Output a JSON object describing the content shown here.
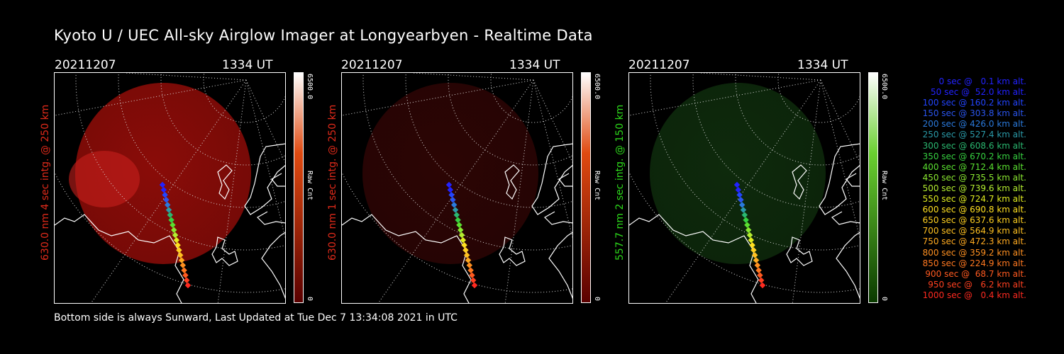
{
  "title": "Kyoto U / UEC All-sky Airglow Imager at Longyearbyen - Realtime Data",
  "footer": "Bottom side is always Sunward, Last Updated at Tue Dec  7 13:34:08 2021 in UTC",
  "panels": [
    {
      "date": "20211207",
      "time": "1334 UT",
      "ylabel": "630.0 nm 4 sec intg. @ 250 km",
      "label_color": "#e02a1a",
      "cbar_max": "6500.0",
      "cbar_min": "0",
      "cbar_title": "Raw Cnt",
      "cbar_top": "#ffffff",
      "cbar_mid": "#e04a10",
      "cbar_bottom": "#5a0000",
      "glow_color": "#8a0c08"
    },
    {
      "date": "20211207",
      "time": "1334 UT",
      "ylabel": "630.0 nm 1 sec intg. @ 250 km",
      "label_color": "#e02a1a",
      "cbar_max": "6500.0",
      "cbar_min": "0",
      "cbar_title": "Raw Cnt",
      "cbar_top": "#ffffff",
      "cbar_mid": "#e04a10",
      "cbar_bottom": "#5a0000",
      "glow_color": "#2c0504"
    },
    {
      "date": "20211207",
      "time": "1334 UT",
      "ylabel": "557.7 nm 2 sec intg. @ 150 km",
      "label_color": "#2cd81a",
      "cbar_max": "6500.0",
      "cbar_min": "0",
      "cbar_title": "Raw Cnt",
      "cbar_top": "#ffffff",
      "cbar_mid": "#6ad030",
      "cbar_bottom": "#0a3a00",
      "glow_color": "#0e2a0c"
    }
  ],
  "legend": [
    {
      "text": "0 sec @   0.1 km alt.",
      "color": "#2222ff"
    },
    {
      "text": "50 sec @  52.0 km alt.",
      "color": "#2222ff"
    },
    {
      "text": "100 sec @ 160.2 km alt.",
      "color": "#2244ff"
    },
    {
      "text": "150 sec @ 303.8 km alt.",
      "color": "#2a55ee"
    },
    {
      "text": "200 sec @ 426.0 km alt.",
      "color": "#2a7adc"
    },
    {
      "text": "250 sec @ 527.4 km alt.",
      "color": "#2a9aa8"
    },
    {
      "text": "300 sec @ 608.6 km alt.",
      "color": "#2ab870"
    },
    {
      "text": "350 sec @ 670.2 km alt.",
      "color": "#36d040"
    },
    {
      "text": "400 sec @ 712.4 km alt.",
      "color": "#5ae030"
    },
    {
      "text": "450 sec @ 735.5 km alt.",
      "color": "#8ae830"
    },
    {
      "text": "500 sec @ 739.6 km alt.",
      "color": "#b4ee30"
    },
    {
      "text": "550 sec @ 724.7 km alt.",
      "color": "#e0ec20"
    },
    {
      "text": "600 sec @ 690.8 km alt.",
      "color": "#ffe020"
    },
    {
      "text": "650 sec @ 637.6 km alt.",
      "color": "#ffd020"
    },
    {
      "text": "700 sec @ 564.9 km alt.",
      "color": "#ffc020"
    },
    {
      "text": "750 sec @ 472.3 km alt.",
      "color": "#ffaa20"
    },
    {
      "text": "800 sec @ 359.2 km alt.",
      "color": "#ff9020"
    },
    {
      "text": "850 sec @ 224.9 km alt.",
      "color": "#ff7820"
    },
    {
      "text": "900 sec @  68.7 km alt.",
      "color": "#ff5a20"
    },
    {
      "text": "950 sec @   6.2 km alt.",
      "color": "#ff4020"
    },
    {
      "text": "1000 sec @   0.4 km alt.",
      "color": "#ff2a20"
    }
  ]
}
